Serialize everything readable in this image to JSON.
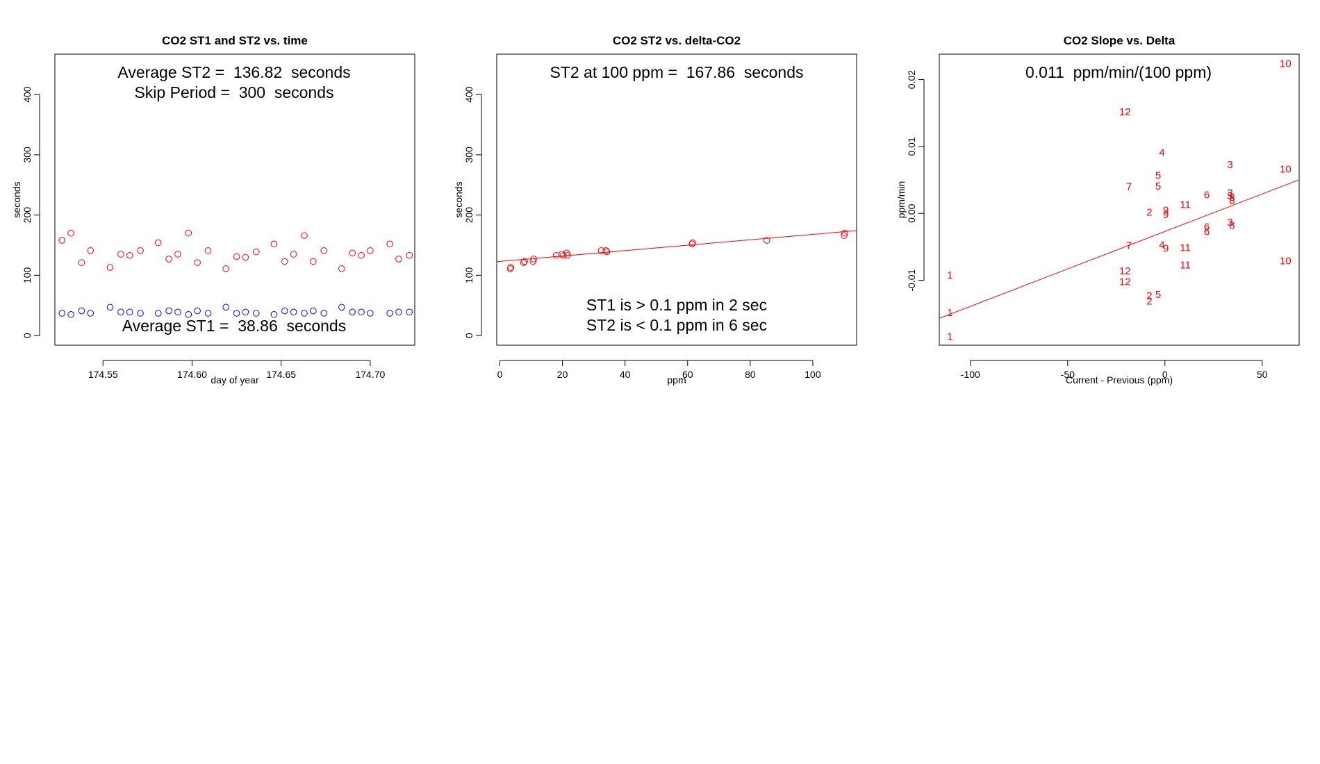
{
  "colors": {
    "st1": "#0000ff",
    "st2": "#ff0000",
    "axis": "#000000",
    "fit": "#ff0000"
  },
  "chart_data": [
    {
      "type": "scatter",
      "title": "CO2 ST1 and ST2 vs. time",
      "xlabel": "day of year",
      "ylabel": "seconds",
      "xlim": [
        174.523,
        174.725
      ],
      "ylim": [
        -16,
        467
      ],
      "xticks": [
        174.55,
        174.6,
        174.65,
        174.7
      ],
      "xtick_labels": [
        "174.55",
        "174.60",
        "174.65",
        "174.70"
      ],
      "yticks": [
        0,
        100,
        200,
        300,
        400
      ],
      "ytick_labels": [
        "0",
        "100",
        "200",
        "300",
        "400"
      ],
      "annotations": [
        "Average ST2 =  136.82  seconds",
        "Skip Period =  300  seconds",
        "Average ST1 =  38.86  seconds"
      ],
      "series": [
        {
          "name": "ST2",
          "color": "#ff0000",
          "x": [
            174.527,
            174.532,
            174.538,
            174.543,
            174.554,
            174.56,
            174.565,
            174.571,
            174.581,
            174.587,
            174.592,
            174.598,
            174.603,
            174.609,
            174.619,
            174.625,
            174.63,
            174.636,
            174.646,
            174.652,
            174.657,
            174.663,
            174.668,
            174.674,
            174.684,
            174.69,
            174.695,
            174.7,
            174.711,
            174.716,
            174.722
          ],
          "y": [
            158,
            170,
            121,
            141,
            113,
            135,
            133,
            141,
            154,
            127,
            135,
            170,
            121,
            141,
            111,
            131,
            130,
            139,
            152,
            123,
            135,
            166,
            123,
            141,
            111,
            137,
            133,
            141,
            152,
            127,
            133
          ]
        },
        {
          "name": "ST1",
          "color": "#0000ff",
          "x": [
            174.527,
            174.532,
            174.538,
            174.543,
            174.554,
            174.56,
            174.565,
            174.571,
            174.581,
            174.587,
            174.592,
            174.598,
            174.603,
            174.609,
            174.619,
            174.625,
            174.63,
            174.636,
            174.646,
            174.652,
            174.657,
            174.663,
            174.668,
            174.674,
            174.684,
            174.69,
            174.695,
            174.7,
            174.711,
            174.716,
            174.722
          ],
          "y": [
            37,
            35,
            41,
            37,
            47,
            39,
            39,
            37,
            37,
            41,
            39,
            35,
            41,
            37,
            47,
            37,
            39,
            37,
            35,
            41,
            39,
            37,
            41,
            37,
            47,
            39,
            39,
            37,
            37,
            39,
            39
          ]
        }
      ]
    },
    {
      "type": "scatter",
      "title": "CO2 ST2 vs. delta-CO2",
      "xlabel": "ppm",
      "ylabel": "seconds",
      "xlim": [
        -1,
        114
      ],
      "ylim": [
        -16,
        467
      ],
      "xticks": [
        0,
        20,
        40,
        60,
        80,
        100
      ],
      "xtick_labels": [
        "0",
        "20",
        "40",
        "60",
        "80",
        "100"
      ],
      "yticks": [
        0,
        100,
        200,
        300,
        400
      ],
      "ytick_labels": [
        "0",
        "100",
        "200",
        "300",
        "400"
      ],
      "annotations": [
        "ST2 at 100 ppm =  167.86  seconds",
        "ST1 is > 0.1 ppm in 2 sec",
        "ST2 is < 0.1 ppm in 6 sec"
      ],
      "fit_line": {
        "intercept": 123.0,
        "slope": 0.4486
      },
      "series": [
        {
          "name": "ST2",
          "color": "#ff0000",
          "x": [
            3.3,
            3.5,
            7.6,
            7.9,
            10.6,
            10.8,
            18,
            19.8,
            20.3,
            21.4,
            21.6,
            32.4,
            33.9,
            34.2,
            61.4,
            61.6,
            85.3,
            110,
            110.2
          ],
          "y": [
            111,
            113,
            121,
            123,
            123,
            127,
            133,
            135,
            133,
            137,
            133,
            141,
            141,
            139,
            152,
            154,
            158,
            166,
            170
          ]
        }
      ]
    },
    {
      "type": "scatter",
      "title": "CO2 Slope vs. Delta",
      "xlabel": "Current - Previous (ppm)",
      "ylabel": "ppm/min",
      "xlim": [
        -116,
        69
      ],
      "ylim": [
        -0.0197,
        0.0238
      ],
      "xticks": [
        -100,
        -50,
        0,
        50
      ],
      "xtick_labels": [
        "-100",
        "-50",
        "0",
        "50"
      ],
      "yticks": [
        -0.01,
        0.0,
        0.01,
        0.02
      ],
      "ytick_labels": [
        "-0.01",
        "0.00",
        "0.01",
        "0.02"
      ],
      "annotations": [
        "0.011  ppm/min/(100 ppm)"
      ],
      "fit_line": {
        "intercept": -0.0027,
        "slope": 0.000112
      },
      "series": [
        {
          "name": "labels",
          "color": "#ff0000",
          "x": [
            -110.5,
            -110.5,
            -110.5,
            -8,
            -8,
            -8,
            33.5,
            33.5,
            33.5,
            33.5,
            -1.5,
            -1.5,
            -3.5,
            -3.5,
            -3.5,
            21.5,
            21.5,
            21.5,
            -18.5,
            -18.5,
            34.5,
            34.5,
            34.5,
            0.5,
            0.5,
            0.5,
            62,
            62,
            62,
            10.5,
            10.5,
            10.5,
            -20.5,
            -20.5,
            -20.5
          ],
          "y": [
            -0.0092,
            -0.0148,
            -0.0184,
            0.0002,
            -0.0123,
            -0.0131,
            0.0073,
            0.0031,
            0.0026,
            -0.0013,
            0.0091,
            -0.0047,
            0.0057,
            0.0041,
            -0.0121,
            0.0028,
            -0.002,
            -0.0027,
            0.004,
            -0.0048,
            0.0024,
            0.0019,
            -0.0018,
            0.0005,
            -0.0002,
            -0.0052,
            0.0224,
            0.0066,
            -0.0071,
            0.0013,
            -0.0051,
            -0.0077,
            0.0152,
            -0.0086,
            -0.0102
          ],
          "labels": [
            "1",
            "1",
            "1",
            "2",
            "2",
            "2",
            "3",
            "3",
            "3",
            "3",
            "4",
            "4",
            "5",
            "5",
            "5",
            "6",
            "6",
            "6",
            "7",
            "7",
            "8",
            "8",
            "8",
            "9",
            "9",
            "9",
            "10",
            "10",
            "10",
            "11",
            "11",
            "11",
            "12",
            "12",
            "12"
          ]
        }
      ]
    }
  ]
}
